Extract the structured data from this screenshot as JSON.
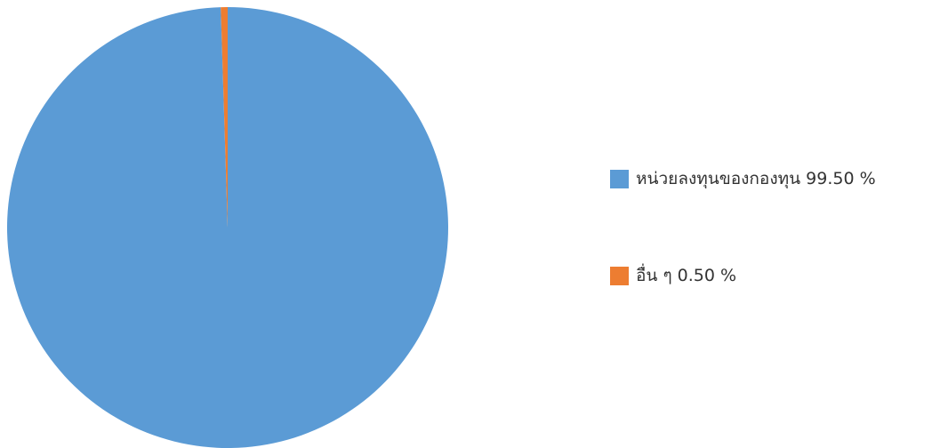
{
  "chart_data": {
    "type": "pie",
    "title": "",
    "legend_position": "right",
    "start_angle_deg": 0,
    "direction": "clockwise",
    "slices": [
      {
        "label": "หน่วยลงทุนของกองทุน 99.50 %",
        "value": 99.5,
        "color": "#5B9BD5"
      },
      {
        "label": "อื่น ๆ 0.50 %",
        "value": 0.5,
        "color": "#ED7D31"
      }
    ]
  }
}
